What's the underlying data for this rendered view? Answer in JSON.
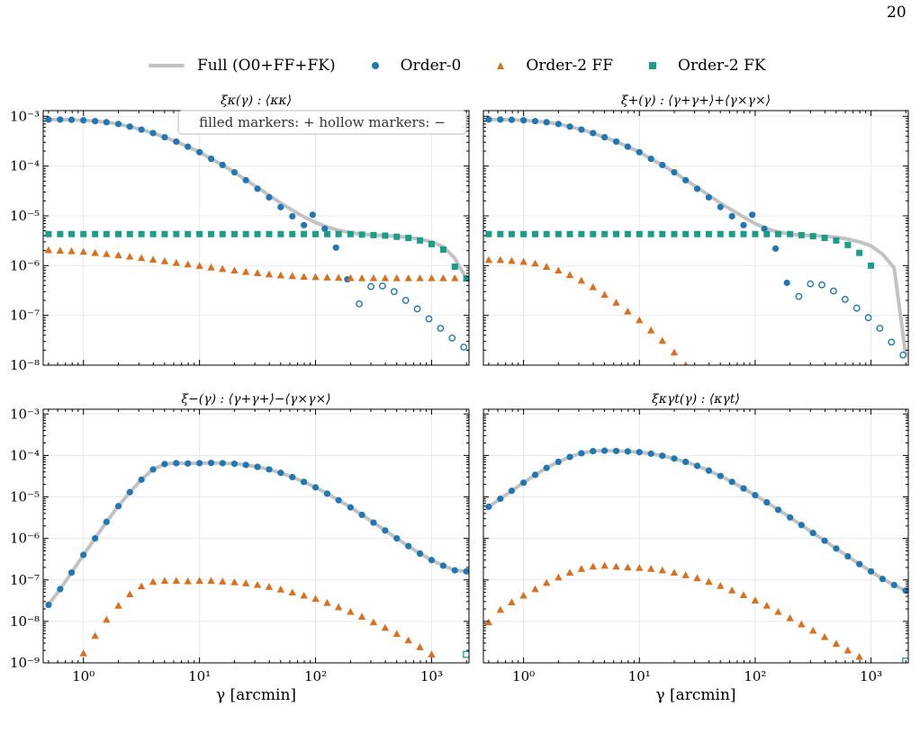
{
  "page_number": "20",
  "legend": {
    "items": [
      {
        "label": "Full (O0+FF+FK)",
        "symbol": "line",
        "color": "#c2c2c2"
      },
      {
        "label": "Order-0",
        "symbol": "circle",
        "color": "#1f77b4"
      },
      {
        "label": "Order-2 FF",
        "symbol": "triangle",
        "color": "#d9701f"
      },
      {
        "label": "Order-2 FK",
        "symbol": "square",
        "color": "#1a9e86"
      }
    ]
  },
  "colors": {
    "full": "#c2c2c2",
    "order0": "#1f77b4",
    "ff": "#d9701f",
    "fk": "#1a9e86",
    "grid": "#e9e9e9"
  },
  "chart_data": [
    {
      "type": "scatter",
      "title": "ξκ(γ) : ⟨κκ⟩",
      "xlabel": "",
      "xscale": "log",
      "yscale": "log",
      "xlim": [
        0.45,
        2100
      ],
      "ylim": [
        1e-08,
        0.0013
      ],
      "x_ticks": [
        1,
        10,
        100,
        1000
      ],
      "x_tick_labels": [
        "",
        "",
        "",
        ""
      ],
      "y_ticks": [
        0.001,
        0.0001,
        1e-05,
        1e-06,
        1e-07,
        1e-08
      ],
      "y_tick_labels": [
        "10⁻³",
        "10⁻⁴",
        "10⁻⁵",
        "10⁻⁶",
        "10⁻⁷",
        "10⁻⁸"
      ],
      "annotation": "filled markers: +    hollow markers: −",
      "grid": true,
      "x": [
        0.5,
        0.63,
        0.79,
        1.0,
        1.26,
        1.58,
        2.0,
        2.51,
        3.16,
        3.98,
        5.01,
        6.31,
        7.94,
        10.0,
        12.6,
        15.8,
        20.0,
        25.1,
        31.6,
        39.8,
        50.1,
        63.1,
        79.4,
        100,
        126,
        158,
        200,
        251,
        316,
        398,
        501,
        631,
        794,
        1000,
        1259,
        1585,
        1995
      ],
      "series": [
        {
          "name": "Full (O0+FF+FK)",
          "style": "line",
          "values": [
            0.00086,
            0.00086,
            0.00085,
            0.00083,
            0.0008,
            0.00076,
            0.0007,
            0.00062,
            0.00054,
            0.00046,
            0.00038,
            0.00031,
            0.000245,
            0.00019,
            0.00014,
            0.000105,
            7.5e-05,
            5.3e-05,
            3.7e-05,
            2.6e-05,
            1.8e-05,
            1.3e-05,
            9.5e-06,
            7.3e-06,
            6e-06,
            5.1e-06,
            4.6e-06,
            4.3e-06,
            4.1e-06,
            4e-06,
            3.9e-06,
            3.7e-06,
            3.4e-06,
            3e-06,
            2.4e-06,
            1.4e-06,
            5.5e-07
          ]
        },
        {
          "name": "Order-0",
          "style": "circle",
          "values": [
            0.00086,
            0.00086,
            0.00085,
            0.00083,
            0.0008,
            0.00076,
            0.0007,
            0.00062,
            0.00054,
            0.00046,
            0.00038,
            0.00031,
            0.000245,
            0.00019,
            0.00014,
            0.000105,
            7.5e-05,
            5.2e-05,
            3.5e-05,
            2.35e-05,
            1.5e-05,
            9.8e-06,
            6.5e-06,
            null,
            null,
            null,
            null,
            null,
            null,
            null,
            null,
            null,
            null,
            null,
            null,
            null,
            null
          ],
          "outliers": [
            {
              "x": 94.4,
              "y": 1.05e-05
            },
            {
              "x": 120,
              "y": 5.5e-06
            },
            {
              "x": 150,
              "y": 2.3e-06
            },
            {
              "x": 188,
              "y": 5.3e-07
            }
          ],
          "negative_x": [
            238,
            300,
            377,
            475,
            598,
            753,
            948,
            1193,
            1503,
            1892
          ],
          "negative_values": [
            1.7e-07,
            3.8e-07,
            3.9e-07,
            3e-07,
            2e-07,
            1.35e-07,
            8.5e-08,
            5.5e-08,
            3.5e-08,
            2.3e-08
          ]
        },
        {
          "name": "Order-2 FF",
          "style": "triangle",
          "values": [
            2.05e-06,
            2e-06,
            1.95e-06,
            1.9e-06,
            1.8e-06,
            1.72e-06,
            1.62e-06,
            1.52e-06,
            1.42e-06,
            1.32e-06,
            1.23e-06,
            1.14e-06,
            1.06e-06,
            9.9e-07,
            9.2e-07,
            8.6e-07,
            8e-07,
            7.5e-07,
            7.1e-07,
            6.7e-07,
            6.4e-07,
            6.2e-07,
            6e-07,
            5.9e-07,
            5.8e-07,
            5.7e-07,
            5.65e-07,
            5.6e-07,
            5.6e-07,
            5.6e-07,
            5.6e-07,
            5.6e-07,
            5.6e-07,
            5.6e-07,
            5.6e-07,
            5.6e-07,
            5.6e-07
          ]
        },
        {
          "name": "Order-2 FK",
          "style": "square",
          "values": [
            4.3e-06,
            4.3e-06,
            4.3e-06,
            4.3e-06,
            4.3e-06,
            4.3e-06,
            4.3e-06,
            4.3e-06,
            4.3e-06,
            4.3e-06,
            4.3e-06,
            4.3e-06,
            4.3e-06,
            4.3e-06,
            4.3e-06,
            4.3e-06,
            4.3e-06,
            4.3e-06,
            4.3e-06,
            4.3e-06,
            4.3e-06,
            4.3e-06,
            4.3e-06,
            4.3e-06,
            4.3e-06,
            4.3e-06,
            4.3e-06,
            4.2e-06,
            4.1e-06,
            4e-06,
            3.8e-06,
            3.6e-06,
            3.2e-06,
            2.7e-06,
            2.1e-06,
            9.5e-07,
            5.5e-07
          ]
        }
      ]
    },
    {
      "type": "scatter",
      "title": "ξ+(γ) : ⟨γ+γ+⟩+⟨γ×γ×⟩",
      "xlabel": "",
      "xscale": "log",
      "yscale": "log",
      "xlim": [
        0.45,
        2100
      ],
      "ylim": [
        1e-08,
        0.0013
      ],
      "x_ticks": [
        1,
        10,
        100,
        1000
      ],
      "x_tick_labels": [
        "",
        "",
        "",
        ""
      ],
      "y_ticks": [
        0.001,
        0.0001,
        1e-05,
        1e-06,
        1e-07,
        1e-08
      ],
      "y_tick_labels": [
        "",
        "",
        "",
        "",
        "",
        ""
      ],
      "grid": true,
      "x": [
        0.5,
        0.63,
        0.79,
        1.0,
        1.26,
        1.58,
        2.0,
        2.51,
        3.16,
        3.98,
        5.01,
        6.31,
        7.94,
        10.0,
        12.6,
        15.8,
        20.0,
        25.1,
        31.6,
        39.8,
        50.1,
        63.1,
        79.4,
        100,
        126,
        158,
        200,
        251,
        316,
        398,
        501,
        631,
        794,
        1000,
        1259,
        1585,
        1995
      ],
      "series": [
        {
          "name": "Full (O0+FF+FK)",
          "style": "line",
          "values": [
            0.00086,
            0.00086,
            0.00085,
            0.00083,
            0.0008,
            0.00076,
            0.0007,
            0.00062,
            0.00054,
            0.00046,
            0.00038,
            0.00031,
            0.000245,
            0.00019,
            0.00014,
            0.000105,
            7.5e-05,
            5.3e-05,
            3.7e-05,
            2.6e-05,
            1.8e-05,
            1.3e-05,
            9.5e-06,
            7e-06,
            5.5e-06,
            4.7e-06,
            4.3e-06,
            4.1e-06,
            4e-06,
            3.9e-06,
            3.7e-06,
            3.4e-06,
            3e-06,
            2.5e-06,
            1.7e-06,
            9e-07,
            1.6e-08
          ]
        },
        {
          "name": "Order-0",
          "style": "circle",
          "values": [
            0.00086,
            0.00086,
            0.00085,
            0.00083,
            0.0008,
            0.00076,
            0.0007,
            0.00062,
            0.00054,
            0.00046,
            0.00038,
            0.00031,
            0.000245,
            0.00019,
            0.00014,
            0.000105,
            7.5e-05,
            5.2e-05,
            3.5e-05,
            2.35e-05,
            1.5e-05,
            9.8e-06,
            6.5e-06,
            null,
            null,
            null,
            null,
            null,
            null,
            null,
            null,
            null,
            null,
            null,
            null,
            null,
            null
          ],
          "outliers": [
            {
              "x": 94.4,
              "y": 1.05e-05
            },
            {
              "x": 120,
              "y": 5.5e-06
            },
            {
              "x": 150,
              "y": 2.2e-06
            },
            {
              "x": 188,
              "y": 4.5e-07
            }
          ],
          "negative_x": [
            238,
            300,
            377,
            475,
            598,
            753,
            948,
            1193,
            1503,
            1892
          ],
          "negative_values": [
            2.4e-07,
            4.3e-07,
            4.1e-07,
            3.1e-07,
            2.1e-07,
            1.4e-07,
            9e-08,
            5.5e-08,
            2.9e-08,
            1.6e-08
          ]
        },
        {
          "name": "Order-2 FF",
          "style": "triangle",
          "values": [
            1.3e-06,
            1.3e-06,
            1.25e-06,
            1.2e-06,
            1.1e-06,
            9.5e-07,
            8e-07,
            6.5e-07,
            5e-07,
            3.7e-07,
            2.6e-07,
            1.8e-07,
            1.2e-07,
            8e-08,
            5e-08,
            3.1e-08,
            1.8e-08,
            1e-08,
            null,
            null,
            null,
            null,
            null,
            null,
            null,
            null,
            null,
            null,
            null,
            null,
            null,
            null,
            null,
            null,
            null,
            null,
            null
          ]
        },
        {
          "name": "Order-2 FK",
          "style": "square",
          "values": [
            4.3e-06,
            4.3e-06,
            4.3e-06,
            4.3e-06,
            4.3e-06,
            4.3e-06,
            4.3e-06,
            4.3e-06,
            4.3e-06,
            4.3e-06,
            4.3e-06,
            4.3e-06,
            4.3e-06,
            4.3e-06,
            4.3e-06,
            4.3e-06,
            4.3e-06,
            4.3e-06,
            4.3e-06,
            4.3e-06,
            4.3e-06,
            4.3e-06,
            4.3e-06,
            4.3e-06,
            4.3e-06,
            4.3e-06,
            4.3e-06,
            4.1e-06,
            3.9e-06,
            3.6e-06,
            3.2e-06,
            2.6e-06,
            1.8e-06,
            1e-06,
            null,
            null,
            null
          ]
        }
      ]
    },
    {
      "type": "scatter",
      "title": "ξ−(γ) : ⟨γ+γ+⟩−⟨γ×γ×⟩",
      "xlabel": "γ [arcmin]",
      "xscale": "log",
      "yscale": "log",
      "xlim": [
        0.45,
        2100
      ],
      "ylim": [
        1e-09,
        0.0013
      ],
      "x_ticks": [
        1,
        10,
        100,
        1000
      ],
      "x_tick_labels": [
        "10⁰",
        "10¹",
        "10²",
        "10³"
      ],
      "y_ticks": [
        0.001,
        0.0001,
        1e-05,
        1e-06,
        1e-07,
        1e-08,
        1e-09
      ],
      "y_tick_labels": [
        "10⁻³",
        "10⁻⁴",
        "10⁻⁵",
        "10⁻⁶",
        "10⁻⁷",
        "10⁻⁸",
        "10⁻⁹"
      ],
      "grid": true,
      "x": [
        0.5,
        0.63,
        0.79,
        1.0,
        1.26,
        1.58,
        2.0,
        2.51,
        3.16,
        3.98,
        5.01,
        6.31,
        7.94,
        10.0,
        12.6,
        15.8,
        20.0,
        25.1,
        31.6,
        39.8,
        50.1,
        63.1,
        79.4,
        100,
        126,
        158,
        200,
        251,
        316,
        398,
        501,
        631,
        794,
        1000,
        1259,
        1585,
        1995
      ],
      "series": [
        {
          "name": "Full (O0+FF+FK)",
          "style": "line",
          "values": [
            2.5e-08,
            6e-08,
            1.5e-07,
            4e-07,
            1e-06,
            2.5e-06,
            6e-06,
            1.3e-05,
            2.6e-05,
            4.6e-05,
            6.2e-05,
            6.5e-05,
            6.4e-05,
            6.5e-05,
            6.6e-05,
            6.5e-05,
            6.3e-05,
            5.9e-05,
            5.3e-05,
            4.6e-05,
            3.8e-05,
            3e-05,
            2.3e-05,
            1.7e-05,
            1.2e-05,
            8.3e-06,
            5.6e-06,
            3.7e-06,
            2.4e-06,
            1.55e-06,
            1e-06,
            6.5e-07,
            4.3e-07,
            3e-07,
            2.2e-07,
            1.7e-07,
            1.6e-07
          ]
        },
        {
          "name": "Order-0",
          "style": "circle",
          "values": [
            2.5e-08,
            6e-08,
            1.5e-07,
            4e-07,
            1e-06,
            2.5e-06,
            6e-06,
            1.3e-05,
            2.6e-05,
            4.6e-05,
            6.2e-05,
            6.5e-05,
            6.4e-05,
            6.5e-05,
            6.6e-05,
            6.5e-05,
            6.3e-05,
            5.9e-05,
            5.3e-05,
            4.6e-05,
            3.8e-05,
            3e-05,
            2.3e-05,
            1.7e-05,
            1.2e-05,
            8.3e-06,
            5.6e-06,
            3.7e-06,
            2.4e-06,
            1.55e-06,
            1e-06,
            6.5e-07,
            4.3e-07,
            3e-07,
            2.2e-07,
            1.7e-07,
            1.6e-07
          ]
        },
        {
          "name": "Order-2 FF",
          "style": "triangle",
          "values": [
            null,
            null,
            null,
            1.7e-09,
            4.5e-09,
            1.1e-08,
            2.4e-08,
            4.5e-08,
            7e-08,
            9e-08,
            9.5e-08,
            9.5e-08,
            9.3e-08,
            9.5e-08,
            9.5e-08,
            9.2e-08,
            8.8e-08,
            8.3e-08,
            7.6e-08,
            6.8e-08,
            5.9e-08,
            5e-08,
            4.2e-08,
            3.5e-08,
            2.8e-08,
            2.2e-08,
            1.7e-08,
            1.3e-08,
            9.5e-09,
            7e-09,
            5e-09,
            3.5e-09,
            2.4e-09,
            1.6e-09,
            null,
            null,
            null
          ]
        },
        {
          "name": "Order-2 FK",
          "style": "square",
          "negative_x": [
            1995
          ],
          "negative_values": [
            1.6e-09
          ]
        }
      ]
    },
    {
      "type": "scatter",
      "title": "ξκγt(γ) : ⟨κγt⟩",
      "xlabel": "γ [arcmin]",
      "xscale": "log",
      "yscale": "log",
      "xlim": [
        0.45,
        2100
      ],
      "ylim": [
        1e-09,
        0.0013
      ],
      "x_ticks": [
        1,
        10,
        100,
        1000
      ],
      "x_tick_labels": [
        "10⁰",
        "10¹",
        "10²",
        "10³"
      ],
      "y_ticks": [
        0.001,
        0.0001,
        1e-05,
        1e-06,
        1e-07,
        1e-08,
        1e-09
      ],
      "y_tick_labels": [
        "",
        "",
        "",
        "",
        "",
        "",
        ""
      ],
      "grid": true,
      "x": [
        0.5,
        0.63,
        0.79,
        1.0,
        1.26,
        1.58,
        2.0,
        2.51,
        3.16,
        3.98,
        5.01,
        6.31,
        7.94,
        10.0,
        12.6,
        15.8,
        20.0,
        25.1,
        31.6,
        39.8,
        50.1,
        63.1,
        79.4,
        100,
        126,
        158,
        200,
        251,
        316,
        398,
        501,
        631,
        794,
        1000,
        1259,
        1585,
        1995
      ],
      "series": [
        {
          "name": "Full (O0+FF+FK)",
          "style": "line",
          "values": [
            5.8e-06,
            9e-06,
            1.4e-05,
            2.2e-05,
            3.4e-05,
            5e-05,
            7e-05,
            9.2e-05,
            0.000113,
            0.000127,
            0.00013,
            0.000128,
            0.000125,
            0.00012,
            0.00011,
            9.8e-05,
            8.4e-05,
            7e-05,
            5.6e-05,
            4.3e-05,
            3.2e-05,
            2.3e-05,
            1.6e-05,
            1.1e-05,
            7.4e-06,
            4.9e-06,
            3.2e-06,
            2.1e-06,
            1.35e-06,
            8.8e-07,
            5.7e-07,
            3.7e-07,
            2.4e-07,
            1.6e-07,
            1.05e-07,
            7.5e-08,
            5.5e-08
          ]
        },
        {
          "name": "Order-0",
          "style": "circle",
          "values": [
            5.8e-06,
            9e-06,
            1.4e-05,
            2.2e-05,
            3.4e-05,
            5e-05,
            7e-05,
            9.2e-05,
            0.000113,
            0.000127,
            0.00013,
            0.000128,
            0.000125,
            0.00012,
            0.00011,
            9.8e-05,
            8.4e-05,
            7e-05,
            5.6e-05,
            4.3e-05,
            3.2e-05,
            2.3e-05,
            1.6e-05,
            1.1e-05,
            7.4e-06,
            4.9e-06,
            3.2e-06,
            2.1e-06,
            1.35e-06,
            8.8e-07,
            5.7e-07,
            3.7e-07,
            2.4e-07,
            1.6e-07,
            1.05e-07,
            7.5e-08,
            5.5e-08
          ]
        },
        {
          "name": "Order-2 FF",
          "style": "triangle",
          "values": [
            9.5e-09,
            1.9e-08,
            2.9e-08,
            4.2e-08,
            6e-08,
            8.5e-08,
            1.15e-07,
            1.5e-07,
            1.85e-07,
            2.1e-07,
            2.2e-07,
            2.1e-07,
            2e-07,
            1.95e-07,
            1.85e-07,
            1.7e-07,
            1.5e-07,
            1.3e-07,
            1.1e-07,
            9e-08,
            7.2e-08,
            5.6e-08,
            4.3e-08,
            3.2e-08,
            2.4e-08,
            1.7e-08,
            1.2e-08,
            8.5e-09,
            6e-09,
            4.2e-09,
            2.9e-09,
            2e-09,
            1.4e-09,
            null,
            null,
            null,
            null
          ]
        },
        {
          "name": "Order-2 FK",
          "style": "square",
          "negative_x": [
            1995
          ],
          "negative_values": [
            1.1e-09
          ]
        }
      ]
    }
  ]
}
